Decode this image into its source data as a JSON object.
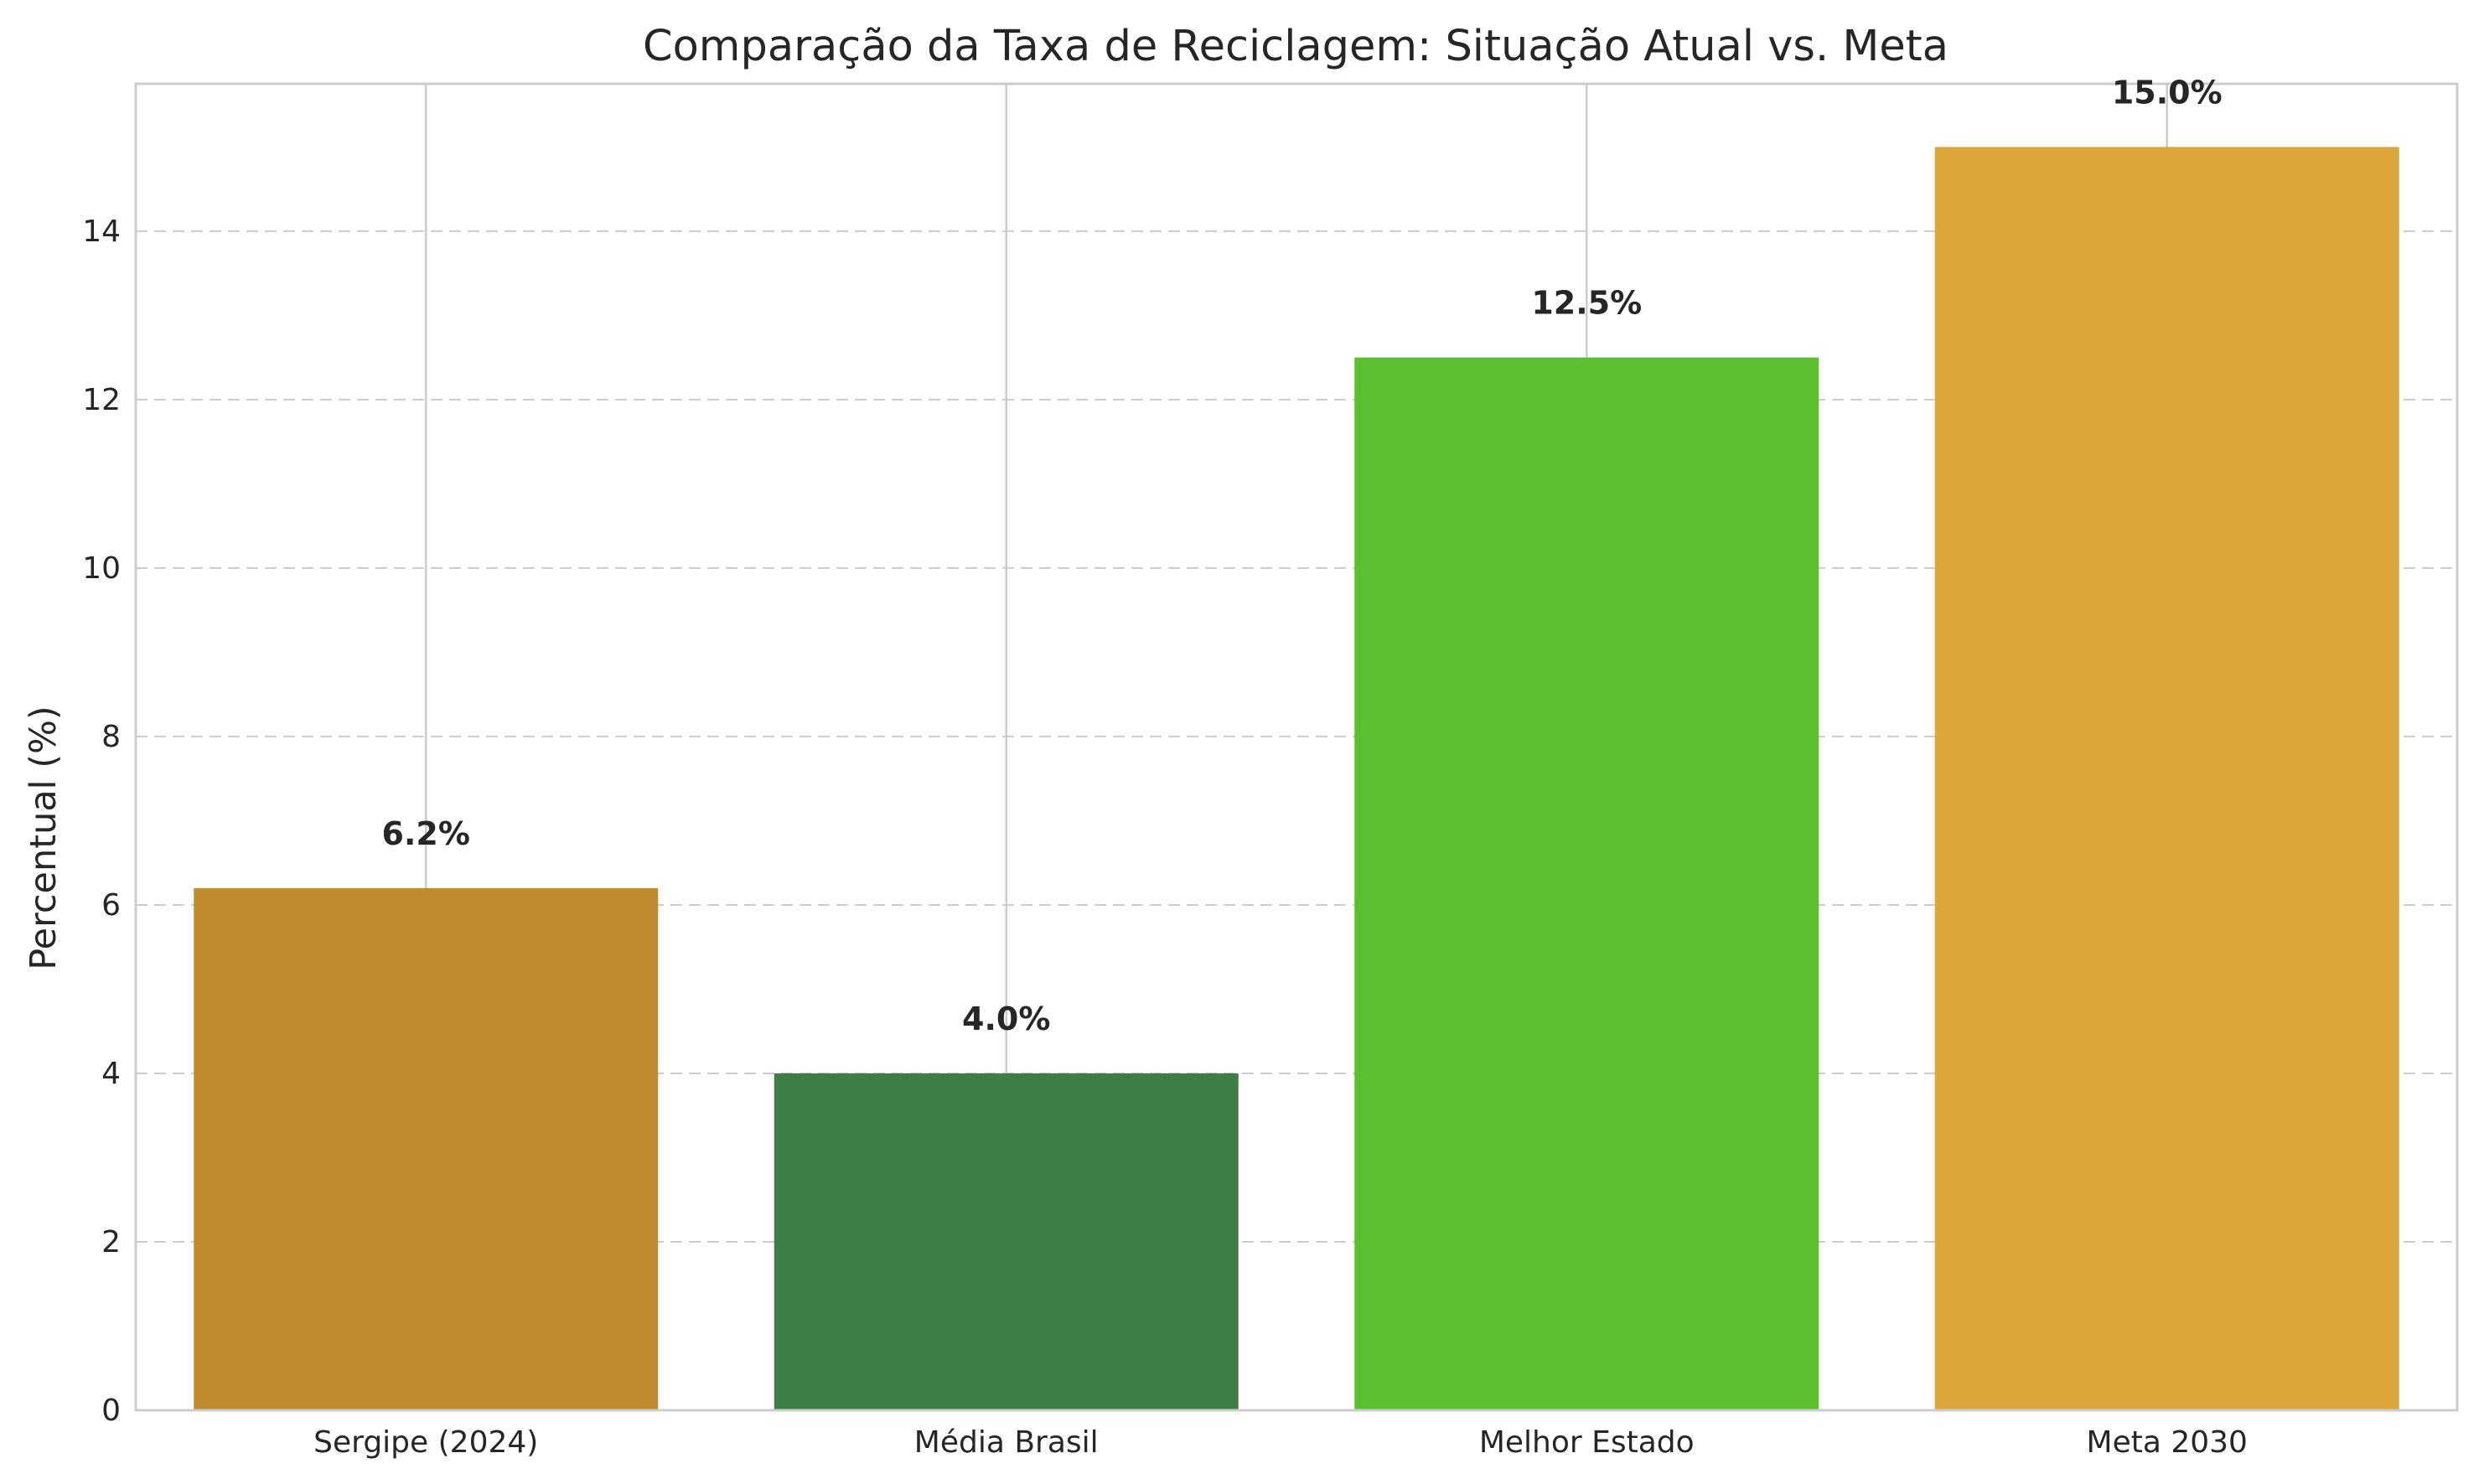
{
  "chart_data": {
    "type": "bar",
    "title": "Comparação da Taxa de Reciclagem: Situação Atual vs. Meta",
    "xlabel": "",
    "ylabel": "Percentual (%)",
    "categories": [
      "Sergipe (2024)",
      "Média Brasil",
      "Melhor Estado",
      "Meta 2030"
    ],
    "values": [
      6.2,
      4.0,
      12.5,
      15.0
    ],
    "data_labels": [
      "6.2%",
      "4.0%",
      "12.5%",
      "15.0%"
    ],
    "colors": [
      "#bf8b2e",
      "#3e7e45",
      "#5ac02e",
      "#dca63a"
    ],
    "ylim": [
      0,
      15.75
    ],
    "yticks": [
      0,
      2,
      4,
      6,
      8,
      10,
      12,
      14
    ],
    "grid": true,
    "legend": "none"
  }
}
